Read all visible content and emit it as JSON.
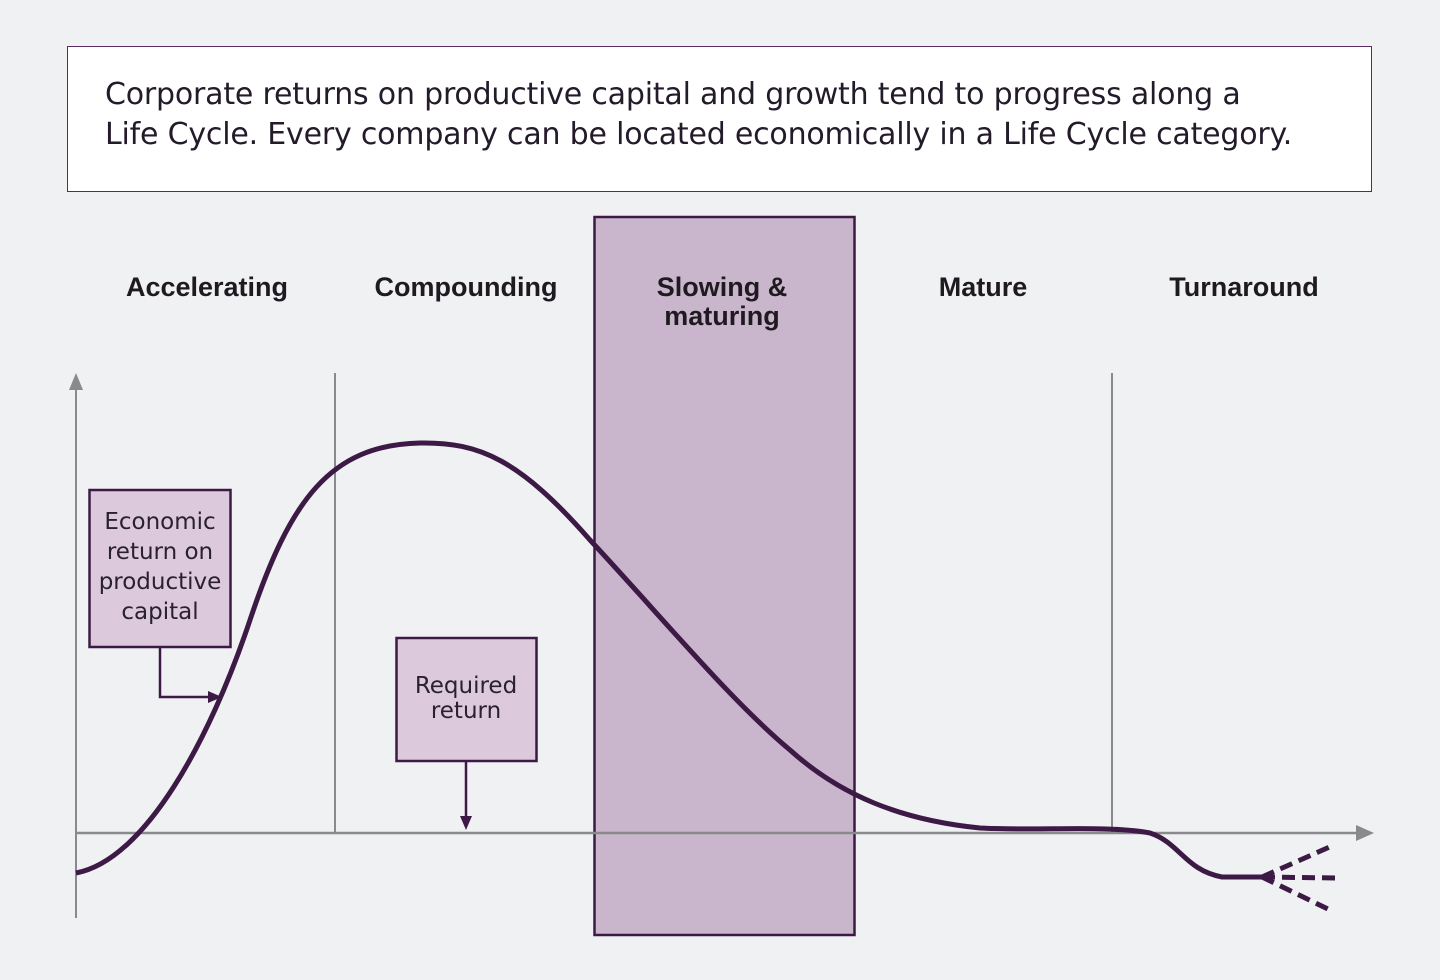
{
  "intro": {
    "line1": "Corporate returns on productive capital and growth tend to progress along a",
    "line2": "Life Cycle. Every company can be located economically in a Life Cycle category."
  },
  "stages": [
    {
      "label": "Accelerating"
    },
    {
      "label": "Compounding"
    },
    {
      "label": "Slowing &",
      "label2": "maturing",
      "highlighted": true
    },
    {
      "label": "Mature"
    },
    {
      "label": "Turnaround"
    }
  ],
  "callouts": {
    "economic_return": {
      "lines": [
        "Economic",
        "return on",
        "productive",
        "capital"
      ]
    },
    "required_return": {
      "lines": [
        "Required",
        "return"
      ]
    }
  },
  "colors": {
    "background": "#f0f1f3",
    "curve": "#3d1a45",
    "highlight_fill": "#c9b6cc",
    "callout_fill": "#dcc9dc",
    "axis": "#8a8a8d"
  },
  "icons": {
    "y_axis_arrow": "arrow-up-icon",
    "x_axis_arrow": "arrow-right-icon"
  }
}
